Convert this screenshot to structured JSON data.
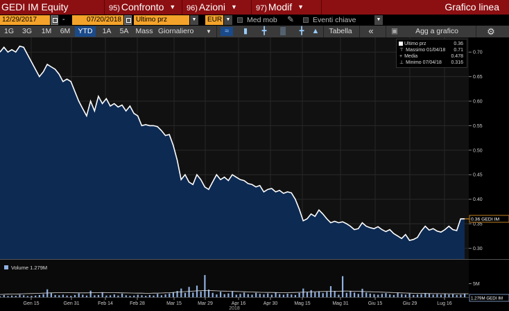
{
  "window": {
    "ticker": "GEDI IM Equity",
    "menus": [
      {
        "num": "95)",
        "label": "Confronto"
      },
      {
        "num": "96)",
        "label": "Azioni"
      },
      {
        "num": "97)",
        "label": "Modif"
      }
    ],
    "title": "Grafico linea"
  },
  "controls": {
    "start_date": "12/29/2017",
    "separator": "-",
    "end_date": "07/20/2018",
    "field": "Ultimo prz",
    "currency": "EUR",
    "med_mob": "Med mob",
    "eventi": "Eventi chiave"
  },
  "toolbar": {
    "periods": [
      "1G",
      "3G",
      "1M",
      "6M",
      "YTD",
      "1A",
      "5A",
      "Mass"
    ],
    "active_period": "YTD",
    "frequency": "Giornaliero",
    "tabella": "Tabella",
    "collapse": "«",
    "add": "Agg a grafico",
    "icons": [
      "line-chart-icon",
      "candle-icon",
      "ohlc-icon",
      "bar-icon",
      "hilo-icon",
      "mountain-icon"
    ]
  },
  "legend": {
    "rows": [
      {
        "label": "Ultimo prz",
        "value": "0.36"
      },
      {
        "label": "Massimo 01/04/18",
        "value": "0.71"
      },
      {
        "label": "Media",
        "value": "0.478"
      },
      {
        "label": "Minimo 07/04/18",
        "value": "0.316"
      }
    ]
  },
  "chart_data": {
    "type": "area",
    "price": {
      "y_ticks": [
        "0.70",
        "0.65",
        "0.60",
        "0.55",
        "0.50",
        "0.45",
        "0.40",
        "0.35",
        "0.30"
      ],
      "ylim": [
        0.278,
        0.73
      ],
      "last_label": "0.36 GEDI IM",
      "values": [
        0.7,
        0.71,
        0.7,
        0.705,
        0.7,
        0.712,
        0.71,
        0.695,
        0.68,
        0.665,
        0.65,
        0.66,
        0.675,
        0.67,
        0.665,
        0.655,
        0.64,
        0.645,
        0.64,
        0.62,
        0.6,
        0.585,
        0.57,
        0.6,
        0.58,
        0.61,
        0.595,
        0.605,
        0.59,
        0.595,
        0.588,
        0.592,
        0.58,
        0.59,
        0.575,
        0.57,
        0.55,
        0.552,
        0.55,
        0.55,
        0.548,
        0.54,
        0.53,
        0.532,
        0.51,
        0.48,
        0.44,
        0.45,
        0.435,
        0.43,
        0.45,
        0.44,
        0.425,
        0.42,
        0.435,
        0.45,
        0.44,
        0.445,
        0.438,
        0.45,
        0.445,
        0.44,
        0.438,
        0.432,
        0.43,
        0.425,
        0.428,
        0.415,
        0.42,
        0.422,
        0.415,
        0.418,
        0.412,
        0.415,
        0.413,
        0.4,
        0.38,
        0.356,
        0.36,
        0.37,
        0.365,
        0.378,
        0.37,
        0.36,
        0.352,
        0.355,
        0.352,
        0.354,
        0.35,
        0.345,
        0.338,
        0.34,
        0.352,
        0.345,
        0.342,
        0.34,
        0.344,
        0.338,
        0.334,
        0.338,
        0.33,
        0.325,
        0.32,
        0.328,
        0.316,
        0.318,
        0.322,
        0.335,
        0.345,
        0.337,
        0.34,
        0.335,
        0.333,
        0.338,
        0.345,
        0.338,
        0.336,
        0.36,
        0.36
      ]
    },
    "volume": {
      "title": "Volume 1.279M",
      "y_ticks": [
        "5M"
      ],
      "ylim": [
        0,
        9000000
      ],
      "last_label": "1.279M GEDI IM",
      "values": [
        300,
        800,
        400,
        600,
        500,
        900,
        700,
        400,
        500,
        600,
        800,
        1100,
        2900,
        1500,
        800,
        700,
        900,
        600,
        500,
        800,
        1400,
        900,
        600,
        2400,
        700,
        800,
        1800,
        600,
        700,
        1000,
        600,
        1300,
        700,
        500,
        600,
        900,
        700,
        500,
        800,
        600,
        1200,
        700,
        1000,
        1400,
        1800,
        2300,
        3200,
        1600,
        3800,
        1700,
        4300,
        2100,
        8200,
        2800,
        1600,
        1000,
        2000,
        1100,
        1400,
        2200,
        900,
        1200,
        1700,
        1100,
        900,
        1600,
        1200,
        1000,
        1400,
        900,
        1800,
        1100,
        900,
        1300,
        1000,
        800,
        1600,
        3200,
        1800,
        2600,
        1800,
        2200,
        1500,
        2000,
        4100,
        2200,
        900,
        7800,
        1600,
        2300,
        1700,
        1200,
        3100,
        1700,
        1300,
        1100,
        900,
        1200,
        1500,
        1000,
        800,
        1700,
        1100,
        900,
        1300,
        800,
        1000,
        1100,
        1500,
        1200,
        900,
        1100,
        900,
        1300,
        1000,
        1100,
        800,
        900,
        1279
      ],
      "avg_values": [
        1000,
        1050,
        1100,
        1120,
        1150,
        1200,
        1250,
        1300,
        1350,
        1400,
        1450,
        1500,
        1550,
        1600,
        1650,
        1700,
        1700,
        1680,
        1650,
        1620,
        1600,
        1600,
        1600,
        1620,
        1650,
        1700,
        1720,
        1700,
        1680,
        1650,
        1620,
        1600,
        1580,
        1550,
        1520,
        1500,
        1480,
        1450,
        1450,
        1480,
        1500,
        1550,
        1600,
        1650,
        1750,
        1850,
        1950,
        2050,
        2150,
        2250,
        2350,
        2400,
        2450,
        2450,
        2400,
        2350,
        2300,
        2250,
        2200,
        2150,
        2100,
        2050,
        2000,
        1950,
        1900,
        1850,
        1800,
        1780,
        1760,
        1740,
        1720,
        1700,
        1680,
        1700,
        1720,
        1750,
        1800,
        1850,
        1900,
        1950,
        2000,
        2050,
        2100,
        2150,
        2200,
        2200,
        2200,
        2250,
        2300,
        2250,
        2200,
        2150,
        2100,
        2050,
        2000,
        1950,
        1900,
        1850,
        1800,
        1750,
        1700,
        1650,
        1600,
        1550,
        1500,
        1450,
        1400,
        1380,
        1360,
        1340,
        1320,
        1300,
        1290,
        1280,
        1270,
        1260,
        1250,
        1250,
        1250,
        1250
      ]
    },
    "x_ticks": [
      "Gen 15",
      "Gen 31",
      "Feb 14",
      "Feb 28",
      "Mar 15",
      "Mar 29",
      "Apr 16",
      "Apr 30",
      "Mag 15",
      "Mag 31",
      "Giu 15",
      "Giu 29",
      "Lug 16"
    ],
    "x_year": "2018",
    "grid": true
  },
  "colors": {
    "title_bar": "#8c0f12",
    "field_orange": "#f4a32a",
    "area_fill": "#0d2a52",
    "line": "#ffffff",
    "last_marker": "#f4a32a",
    "volume_bar": "#8fb0e0"
  }
}
